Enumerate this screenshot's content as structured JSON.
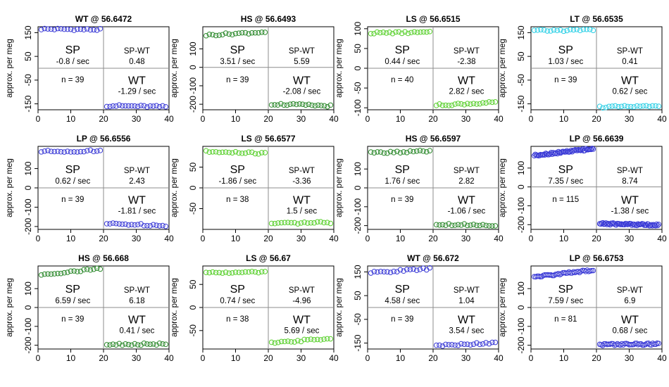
{
  "figure": {
    "ylabel": "approx. per meg",
    "xticks": [
      0,
      10,
      20,
      30,
      40
    ]
  },
  "chart_data": [
    {
      "type": "scatter",
      "title": "WT @ 56.6472",
      "ylabel": "approx. per meg",
      "xlim": [
        0,
        40
      ],
      "ylim": [
        -175,
        175
      ],
      "yticks": [
        150,
        50,
        -50,
        -150
      ],
      "color": "#3a3ad6",
      "left": {
        "n": 19,
        "mean": 164,
        "slope": -0.8
      },
      "right": {
        "n": 20,
        "mean": -160,
        "slope": -1.29
      },
      "sp": {
        "label": "SP",
        "rate": "-0.8 / sec"
      },
      "spwt": {
        "label": "SP-WT",
        "value": "0.48"
      },
      "n": "n = 39",
      "wt": {
        "label": "WT",
        "rate": "-1.29 / sec"
      }
    },
    {
      "type": "scatter",
      "title": "HS @ 56.6493",
      "ylabel": "approx. per meg",
      "xlim": [
        0,
        40
      ],
      "ylim": [
        -230,
        220
      ],
      "yticks": [
        100,
        0,
        -100,
        -200
      ],
      "color": "#2e8a2e",
      "left": {
        "n": 19,
        "mean": 183,
        "slope": 3.51
      },
      "right": {
        "n": 20,
        "mean": -204,
        "slope": -2.08
      },
      "sp": {
        "label": "SP",
        "rate": "3.51 / sec"
      },
      "spwt": {
        "label": "SP-WT",
        "value": "5.59"
      },
      "n": "n = 39",
      "wt": {
        "label": "WT",
        "rate": "-2.08 / sec"
      }
    },
    {
      "type": "scatter",
      "title": "LS @ 56.6515",
      "ylabel": "approx. per meg",
      "xlim": [
        0,
        40
      ],
      "ylim": [
        -105,
        105
      ],
      "yticks": [
        100,
        50,
        0,
        -50,
        -100
      ],
      "color": "#5ad02e",
      "left": {
        "n": 20,
        "mean": 90,
        "slope": 0.44
      },
      "right": {
        "n": 20,
        "mean": -90,
        "slope": 2.82
      },
      "sp": {
        "label": "SP",
        "rate": "0.44 / sec"
      },
      "spwt": {
        "label": "SP-WT",
        "value": "-2.38"
      },
      "n": "n = 40",
      "wt": {
        "label": "WT",
        "rate": "2.82 / sec"
      }
    },
    {
      "type": "scatter",
      "title": "LT @ 56.6535",
      "ylabel": "approx. per meg",
      "xlim": [
        0,
        40
      ],
      "ylim": [
        -175,
        175
      ],
      "yticks": [
        150,
        50,
        -50,
        -150
      ],
      "color": "#2ed0e6",
      "left": {
        "n": 19,
        "mean": 160,
        "slope": 1.03
      },
      "right": {
        "n": 20,
        "mean": -162,
        "slope": 0.62
      },
      "sp": {
        "label": "SP",
        "rate": "1.03 / sec"
      },
      "spwt": {
        "label": "SP-WT",
        "value": "0.41"
      },
      "n": "n = 39",
      "wt": {
        "label": "WT",
        "rate": "0.62 / sec"
      }
    },
    {
      "type": "scatter",
      "title": "LP @ 56.6556",
      "ylabel": "approx. per meg",
      "xlim": [
        0,
        40
      ],
      "ylim": [
        -215,
        215
      ],
      "yticks": [
        100,
        0,
        -100,
        -200
      ],
      "color": "#3a3ad6",
      "left": {
        "n": 19,
        "mean": 190,
        "slope": 0.62
      },
      "right": {
        "n": 20,
        "mean": -190,
        "slope": -1.81
      },
      "sp": {
        "label": "SP",
        "rate": "0.62 / sec"
      },
      "spwt": {
        "label": "SP-WT",
        "value": "2.43"
      },
      "n": "n = 39",
      "wt": {
        "label": "WT",
        "rate": "-1.81 / sec"
      }
    },
    {
      "type": "scatter",
      "title": "LS @ 56.6577",
      "ylabel": "approx. per meg",
      "xlim": [
        0,
        40
      ],
      "ylim": [
        -100,
        100
      ],
      "yticks": [
        50,
        0,
        -50
      ],
      "color": "#5ad02e",
      "left": {
        "n": 19,
        "mean": 85,
        "slope": -1.86
      },
      "right": {
        "n": 19,
        "mean": -85,
        "slope": 1.5
      },
      "sp": {
        "label": "SP",
        "rate": "-1.86 / sec"
      },
      "spwt": {
        "label": "SP-WT",
        "value": "-3.36"
      },
      "n": "n = 38",
      "wt": {
        "label": "WT",
        "rate": "1.5 / sec"
      }
    },
    {
      "type": "scatter",
      "title": "HS @ 56.6597",
      "ylabel": "approx. per meg",
      "xlim": [
        0,
        40
      ],
      "ylim": [
        -220,
        220
      ],
      "yticks": [
        100,
        0,
        -100,
        -200
      ],
      "color": "#2e8a2e",
      "left": {
        "n": 19,
        "mean": 190,
        "slope": 1.76
      },
      "right": {
        "n": 20,
        "mean": -195,
        "slope": -1.06
      },
      "sp": {
        "label": "SP",
        "rate": "1.76 / sec"
      },
      "spwt": {
        "label": "SP-WT",
        "value": "2.82"
      },
      "n": "n = 39",
      "wt": {
        "label": "WT",
        "rate": "-1.06 / sec"
      }
    },
    {
      "type": "scatter",
      "title": "LP @ 56.6639",
      "ylabel": "approx. per meg",
      "xlim": [
        0,
        40
      ],
      "ylim": [
        -225,
        215
      ],
      "yticks": [
        100,
        0,
        -100,
        -200
      ],
      "color": "#3a3ad6",
      "left": {
        "n": 57,
        "mean": 185,
        "slope": 7.35
      },
      "right": {
        "n": 58,
        "mean": -198,
        "slope": -1.38
      },
      "sp": {
        "label": "SP",
        "rate": "7.35 / sec"
      },
      "spwt": {
        "label": "SP-WT",
        "value": "8.74"
      },
      "n": "n = 115",
      "wt": {
        "label": "WT",
        "rate": "-1.38 / sec"
      }
    },
    {
      "type": "scatter",
      "title": "HS @ 56.668",
      "ylabel": "approx. per meg",
      "xlim": [
        0,
        40
      ],
      "ylim": [
        -220,
        220
      ],
      "yticks": [
        100,
        0,
        -100,
        -200
      ],
      "color": "#2e8a2e",
      "left": {
        "n": 19,
        "mean": 190,
        "slope": 6.59
      },
      "right": {
        "n": 20,
        "mean": -195,
        "slope": 0.41
      },
      "sp": {
        "label": "SP",
        "rate": "6.59 / sec"
      },
      "spwt": {
        "label": "SP-WT",
        "value": "6.18"
      },
      "n": "n = 39",
      "wt": {
        "label": "WT",
        "rate": "0.41 / sec"
      }
    },
    {
      "type": "scatter",
      "title": "LS @ 56.67",
      "ylabel": "approx. per meg",
      "xlim": [
        0,
        40
      ],
      "ylim": [
        -90,
        90
      ],
      "yticks": [
        50,
        0,
        -50
      ],
      "color": "#5ad02e",
      "left": {
        "n": 19,
        "mean": 76,
        "slope": 0.74
      },
      "right": {
        "n": 19,
        "mean": -72,
        "slope": 5.69
      },
      "sp": {
        "label": "SP",
        "rate": "0.74 / sec"
      },
      "spwt": {
        "label": "SP-WT",
        "value": "-4.96"
      },
      "n": "n = 38",
      "wt": {
        "label": "WT",
        "rate": "5.69 / sec"
      }
    },
    {
      "type": "scatter",
      "title": "WT @ 56.672",
      "ylabel": "approx. per meg",
      "xlim": [
        0,
        40
      ],
      "ylim": [
        -175,
        175
      ],
      "yticks": [
        150,
        50,
        -50,
        -150
      ],
      "color": "#3a3ad6",
      "left": {
        "n": 19,
        "mean": 155,
        "slope": 4.58
      },
      "right": {
        "n": 20,
        "mean": -155,
        "slope": 3.54
      },
      "sp": {
        "label": "SP",
        "rate": "4.58 / sec"
      },
      "spwt": {
        "label": "SP-WT",
        "value": "1.04"
      },
      "n": "n = 39",
      "wt": {
        "label": "WT",
        "rate": "3.54 / sec"
      }
    },
    {
      "type": "scatter",
      "title": "LP @ 56.6753",
      "ylabel": "approx. per meg",
      "xlim": [
        0,
        40
      ],
      "ylim": [
        -220,
        220
      ],
      "yticks": [
        100,
        0,
        -100,
        -200
      ],
      "color": "#3a3ad6",
      "left": {
        "n": 40,
        "mean": 180,
        "slope": 7.59
      },
      "right": {
        "n": 41,
        "mean": -195,
        "slope": 0.68
      },
      "sp": {
        "label": "SP",
        "rate": "7.59 / sec"
      },
      "spwt": {
        "label": "SP-WT",
        "value": "6.9"
      },
      "n": "n = 81",
      "wt": {
        "label": "WT",
        "rate": "0.68 / sec"
      }
    }
  ]
}
